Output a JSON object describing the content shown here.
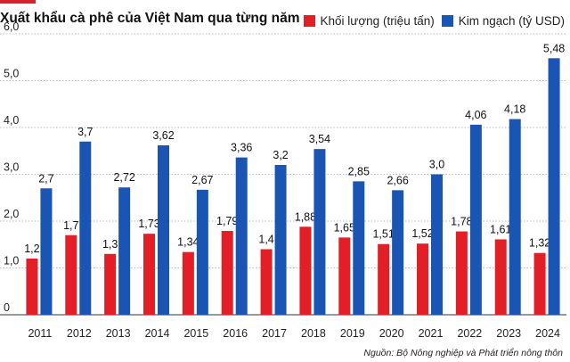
{
  "title": "Xuất khẩu cà phê của Việt Nam qua từng năm",
  "legend": [
    {
      "label": "Khối lượng (triệu tấn)",
      "color": "#e21e26"
    },
    {
      "label": "Kim ngạch (tỷ USD)",
      "color": "#1b55b3"
    }
  ],
  "source": "Nguồn: Bộ Nông nghiệp và Phát triển nông thôn",
  "chart_data": {
    "type": "bar",
    "title": "Xuất khẩu cà phê của Việt Nam qua từng năm",
    "categories": [
      "2011",
      "2012",
      "2013",
      "2014",
      "2015",
      "2016",
      "2017",
      "2018",
      "2019",
      "2020",
      "2021",
      "2022",
      "2023",
      "2024"
    ],
    "series": [
      {
        "name": "Khối lượng (triệu tấn)",
        "color": "#e21e26",
        "values": [
          1.2,
          1.7,
          1.3,
          1.73,
          1.34,
          1.79,
          1.4,
          1.88,
          1.65,
          1.51,
          1.52,
          1.78,
          1.61,
          1.32
        ],
        "labels": [
          "1,2",
          "1,7",
          "1,3",
          "1,73",
          "1,34",
          "1,79",
          "1,4",
          "1,88",
          "1,65",
          "1,51",
          "1,52",
          "1,78",
          "1,61",
          "1,32"
        ]
      },
      {
        "name": "Kim ngạch (tỷ USD)",
        "color": "#1b55b3",
        "values": [
          2.7,
          3.7,
          2.72,
          3.62,
          2.67,
          3.36,
          3.2,
          3.54,
          2.85,
          2.66,
          3.0,
          4.06,
          4.18,
          5.48
        ],
        "labels": [
          "2,7",
          "3,7",
          "2,72",
          "3,62",
          "2,67",
          "3,36",
          "3,2",
          "3,54",
          "2,85",
          "2,66",
          "3,0",
          "4,06",
          "4,18",
          "5,48"
        ]
      }
    ],
    "yticks": [
      0,
      1.0,
      2.0,
      3.0,
      4.0,
      5.0,
      6.0
    ],
    "ytick_labels": [
      "0",
      "1,0",
      "2,0",
      "3,0",
      "4,0",
      "5,0",
      "6,0"
    ],
    "ylim": [
      0,
      6
    ],
    "grid": true,
    "legend_position": "top-right"
  }
}
